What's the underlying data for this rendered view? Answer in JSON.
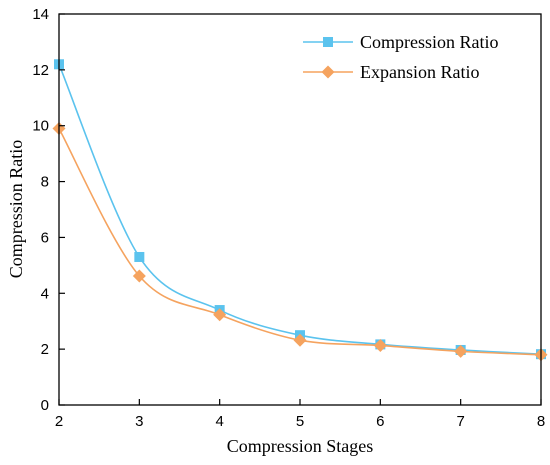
{
  "chart_data": {
    "type": "line",
    "title": "",
    "xlabel": "Compression Stages",
    "ylabel": "Compression Ratio",
    "xlim": [
      2,
      8
    ],
    "ylim": [
      0,
      14
    ],
    "x_ticks": [
      "2",
      "3",
      "4",
      "5",
      "6",
      "7",
      "8"
    ],
    "y_ticks": [
      "0",
      "2",
      "4",
      "6",
      "8",
      "10",
      "12",
      "14"
    ],
    "grid": false,
    "legend_position": "top-right",
    "x": [
      2,
      3,
      4,
      5,
      6,
      7,
      8
    ],
    "series": [
      {
        "name": "Compression Ratio",
        "color": "#5bc3ee",
        "marker": "square",
        "values": [
          12.2,
          5.3,
          3.4,
          2.5,
          2.17,
          1.97,
          1.82
        ]
      },
      {
        "name": "Expansion Ratio",
        "color": "#f5a35f",
        "marker": "diamond",
        "values": [
          9.9,
          4.62,
          3.23,
          2.32,
          2.13,
          1.92,
          1.8
        ]
      }
    ]
  }
}
